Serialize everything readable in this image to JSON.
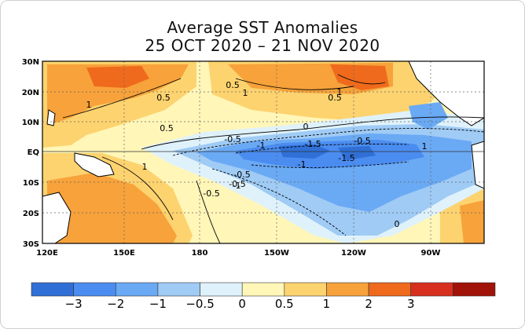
{
  "title": "Average SST Anomalies",
  "subtitle": "25 OCT 2020 – 21 NOV 2020",
  "map": {
    "lat_labels": [
      "30N",
      "20N",
      "10N",
      "EQ",
      "10S",
      "20S",
      "30S"
    ],
    "lon_labels": [
      "120E",
      "150E",
      "180",
      "150W",
      "120W",
      "90W"
    ],
    "contour_labels": [
      "1",
      "0.5",
      "1",
      "0.5",
      "1",
      "0.5",
      "1",
      "-0.5",
      "-1",
      "-1.5",
      "-0.5",
      "0",
      "-0.5",
      "-1",
      "-1.5",
      "-1",
      "-0.5",
      "0",
      "1",
      "0.5",
      "-0.5"
    ]
  },
  "colorbar": {
    "tick_labels": [
      "−3",
      "−2",
      "−1",
      "−0.5",
      "0",
      "0.5",
      "1",
      "2",
      "3"
    ],
    "colors": [
      "#2f6fd6",
      "#4a8cf0",
      "#6aa9f4",
      "#9fcbf5",
      "#dff2fb",
      "#fff6b8",
      "#fdd36f",
      "#f7a23a",
      "#ef6a1c",
      "#d7301f",
      "#a11208"
    ]
  }
}
